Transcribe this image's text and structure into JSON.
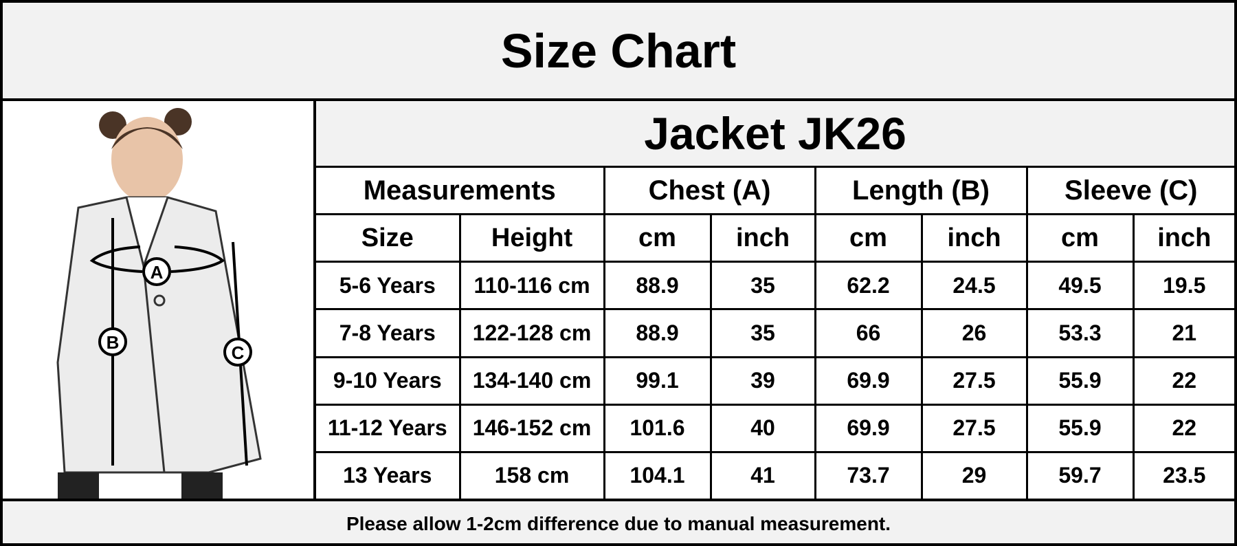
{
  "header": {
    "title": "Size Chart"
  },
  "figure": {
    "labels": [
      "A",
      "B",
      "C"
    ]
  },
  "table": {
    "product": "Jacket JK26",
    "groups": [
      "Measurements",
      "Chest (A)",
      "Length (B)",
      "Sleeve (C)"
    ],
    "columns": [
      "Size",
      "Height",
      "cm",
      "inch",
      "cm",
      "inch",
      "cm",
      "inch"
    ],
    "rows": [
      [
        "5-6 Years",
        "110-116 cm",
        88.9,
        35,
        62.2,
        24.5,
        49.5,
        19.5
      ],
      [
        "7-8 Years",
        "122-128 cm",
        88.9,
        35,
        66,
        26,
        53.3,
        21
      ],
      [
        "9-10 Years",
        "134-140 cm",
        99.1,
        39,
        69.9,
        27.5,
        55.9,
        22
      ],
      [
        "11-12 Years",
        "146-152 cm",
        101.6,
        40,
        69.9,
        27.5,
        55.9,
        22
      ],
      [
        "13 Years",
        "158 cm",
        104.1,
        41,
        73.7,
        29,
        59.7,
        23.5
      ]
    ]
  },
  "footer": {
    "note": "Please allow 1-2cm difference due to manual measurement."
  }
}
